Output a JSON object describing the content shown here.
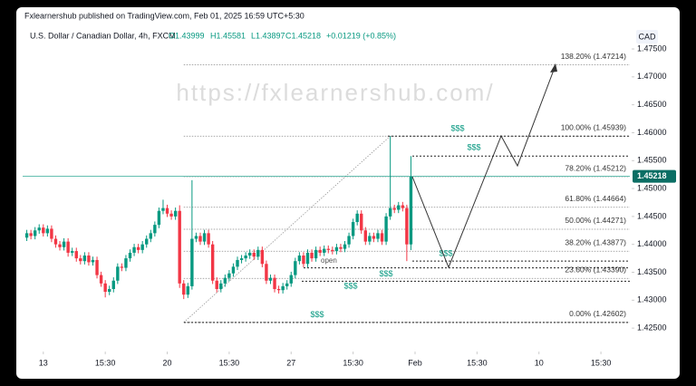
{
  "header": {
    "publisher": "Fxlearnershub published on TradingView.com, Feb 01, 2025 16:59 UTC+5:30"
  },
  "chart_data": {
    "type": "candlestick",
    "symbol": "U.S. Dollar / Canadian Dollar, 4h, FXCM",
    "ohlc_labels": [
      "O1.43999",
      "H1.45581",
      "L1.43897",
      "C1.45218"
    ],
    "change": "+0.01219 (+0.85%)",
    "currency": "CAD",
    "watermark": "https://fxlearnershub.com/",
    "note": "open",
    "up_color": "#089981",
    "down_color": "#f23645",
    "open": [
      1.4412,
      1.442,
      1.4415,
      1.4425,
      1.443,
      1.442,
      1.4428,
      1.441,
      1.44,
      1.4395,
      1.4405,
      1.4385,
      1.4388,
      1.4375,
      1.437,
      1.438,
      1.4368,
      1.4372,
      1.4345,
      1.433,
      1.4315,
      1.432,
      1.4335,
      1.436,
      1.4358,
      1.4375,
      1.4385,
      1.4395,
      1.439,
      1.44,
      1.441,
      1.442,
      1.4435,
      1.446,
      1.4465,
      1.4455,
      1.445,
      1.446,
      1.433,
      1.431,
      1.4325,
      1.441,
      1.4415,
      1.4405,
      1.442,
      1.44,
      1.4335,
      1.432,
      1.433,
      1.434,
      1.4348,
      1.436,
      1.4372,
      1.4375,
      1.438,
      1.4385,
      1.4378,
      1.439,
      1.4365,
      1.4335,
      1.434,
      1.432,
      1.4318,
      1.4325,
      1.433,
      1.4345,
      1.437,
      1.438,
      1.4365,
      1.4385,
      1.4375,
      1.439,
      1.4385,
      1.4392,
      1.439,
      1.4388,
      1.4395,
      1.4392,
      1.44,
      1.4415,
      1.444,
      1.4455,
      1.4425,
      1.4405,
      1.4415,
      1.441,
      1.442,
      1.4405,
      1.445,
      1.4465,
      1.4462,
      1.447,
      1.4465,
      1.43999
    ],
    "high": [
      1.4426,
      1.4426,
      1.4431,
      1.4436,
      1.4436,
      1.4434,
      1.4434,
      1.4416,
      1.4406,
      1.4411,
      1.4411,
      1.4394,
      1.4394,
      1.4381,
      1.4386,
      1.4386,
      1.4378,
      1.4378,
      1.4351,
      1.4336,
      1.4326,
      1.4341,
      1.4366,
      1.4366,
      1.4381,
      1.4391,
      1.4401,
      1.4401,
      1.4406,
      1.4416,
      1.4426,
      1.4441,
      1.4466,
      1.448,
      1.4471,
      1.4461,
      1.4466,
      1.447,
      1.4336,
      1.4331,
      1.4515,
      1.4421,
      1.4421,
      1.4426,
      1.4426,
      1.4406,
      1.4341,
      1.4336,
      1.4346,
      1.4354,
      1.4366,
      1.4378,
      1.4381,
      1.4386,
      1.4391,
      1.4391,
      1.4396,
      1.4396,
      1.4371,
      1.4346,
      1.4346,
      1.4326,
      1.4331,
      1.4336,
      1.4351,
      1.4376,
      1.4386,
      1.4386,
      1.4391,
      1.4391,
      1.4396,
      1.4396,
      1.4398,
      1.4398,
      1.4396,
      1.4401,
      1.4401,
      1.4406,
      1.4421,
      1.4446,
      1.4461,
      1.4461,
      1.4431,
      1.4421,
      1.4421,
      1.4426,
      1.4426,
      1.4456,
      1.4594,
      1.4471,
      1.4476,
      1.4476,
      1.4471,
      1.45581
    ],
    "low": [
      1.4406,
      1.4409,
      1.4409,
      1.4419,
      1.4414,
      1.4414,
      1.4404,
      1.4394,
      1.4389,
      1.4389,
      1.4378,
      1.4379,
      1.4369,
      1.4364,
      1.4364,
      1.4362,
      1.4362,
      1.4339,
      1.4324,
      1.4305,
      1.4309,
      1.4314,
      1.4329,
      1.4352,
      1.4352,
      1.4369,
      1.4379,
      1.4384,
      1.4384,
      1.4394,
      1.4404,
      1.4414,
      1.4429,
      1.4454,
      1.4449,
      1.4444,
      1.4444,
      1.4322,
      1.4302,
      1.4304,
      1.4319,
      1.4404,
      1.4399,
      1.4399,
      1.4394,
      1.4329,
      1.4314,
      1.4314,
      1.4324,
      1.4334,
      1.4342,
      1.4354,
      1.4366,
      1.4369,
      1.4374,
      1.4372,
      1.4372,
      1.4359,
      1.4329,
      1.4329,
      1.4314,
      1.4312,
      1.4312,
      1.4319,
      1.4324,
      1.4339,
      1.4364,
      1.4359,
      1.4359,
      1.4369,
      1.4369,
      1.4379,
      1.4379,
      1.4384,
      1.4382,
      1.4382,
      1.4386,
      1.4386,
      1.4394,
      1.4409,
      1.4434,
      1.4419,
      1.4399,
      1.4399,
      1.4404,
      1.4404,
      1.4399,
      1.4399,
      1.4444,
      1.4456,
      1.4456,
      1.4459,
      1.437,
      1.43897
    ],
    "close": [
      1.442,
      1.4415,
      1.4425,
      1.443,
      1.442,
      1.4428,
      1.441,
      1.44,
      1.4395,
      1.4405,
      1.4385,
      1.4388,
      1.4375,
      1.437,
      1.438,
      1.4368,
      1.4372,
      1.4345,
      1.433,
      1.4315,
      1.432,
      1.4335,
      1.436,
      1.4358,
      1.4375,
      1.4385,
      1.4395,
      1.439,
      1.44,
      1.441,
      1.442,
      1.4435,
      1.446,
      1.4465,
      1.4455,
      1.445,
      1.446,
      1.433,
      1.431,
      1.4325,
      1.441,
      1.4415,
      1.4405,
      1.442,
      1.44,
      1.4335,
      1.432,
      1.433,
      1.434,
      1.4348,
      1.436,
      1.4372,
      1.4375,
      1.438,
      1.4385,
      1.4378,
      1.439,
      1.4365,
      1.4335,
      1.434,
      1.432,
      1.4318,
      1.4325,
      1.433,
      1.4345,
      1.437,
      1.438,
      1.4365,
      1.4385,
      1.4375,
      1.439,
      1.4385,
      1.4392,
      1.439,
      1.4388,
      1.4395,
      1.4392,
      1.44,
      1.4415,
      1.444,
      1.4455,
      1.4425,
      1.4405,
      1.4415,
      1.441,
      1.442,
      1.4405,
      1.445,
      1.4465,
      1.4462,
      1.447,
      1.4465,
      1.44,
      1.45218
    ],
    "last_price": 1.45218,
    "xlim": [
      -1,
      146
    ],
    "xticks": [
      {
        "value": 4,
        "label": "13"
      },
      {
        "value": 19,
        "label": "15:30"
      },
      {
        "value": 34,
        "label": "20"
      },
      {
        "value": 49,
        "label": "15:30"
      },
      {
        "value": 64,
        "label": "27"
      },
      {
        "value": 79,
        "label": "15:30"
      },
      {
        "value": 94,
        "label": "Feb"
      },
      {
        "value": 109,
        "label": "15:30"
      },
      {
        "value": 124,
        "label": "10"
      },
      {
        "value": 139,
        "label": "15:30"
      }
    ],
    "ylim": [
      1.4208,
      1.4789
    ],
    "yticks": [
      {
        "value": 1.475,
        "label": "1.47500"
      },
      {
        "value": 1.47,
        "label": "1.47000"
      },
      {
        "value": 1.465,
        "label": "1.46500"
      },
      {
        "value": 1.46,
        "label": "1.46000"
      },
      {
        "value": 1.455,
        "label": "1.45500"
      },
      {
        "value": 1.45,
        "label": "1.45000"
      },
      {
        "value": 1.445,
        "label": "1.44500"
      },
      {
        "value": 1.44,
        "label": "1.44000"
      },
      {
        "value": 1.435,
        "label": "1.43500"
      },
      {
        "value": 1.43,
        "label": "1.43000"
      },
      {
        "value": 1.425,
        "label": "1.42500"
      }
    ],
    "fib_levels": [
      {
        "value": 1.47214,
        "label": "138.20% (1.47214)"
      },
      {
        "value": 1.45939,
        "label": "100.00% (1.45939)"
      },
      {
        "value": 1.45212,
        "label": "78.20% (1.45212)"
      },
      {
        "value": 1.44664,
        "label": "61.80% (1.44664)"
      },
      {
        "value": 1.44271,
        "label": "50.00% (1.44271)"
      },
      {
        "value": 1.43877,
        "label": "38.20% (1.43877)"
      },
      {
        "value": 1.4339,
        "label": "23.60% (1.43390)"
      },
      {
        "value": 1.42602,
        "label": "0.00% (1.42602)"
      }
    ],
    "liquidity": [
      {
        "value": 1.45939,
        "label": "$$$"
      },
      {
        "value": 1.45581,
        "label": "$$$"
      },
      {
        "value": 1.437,
        "label": "$$$"
      },
      {
        "value": 1.4358,
        "label": "$$$"
      },
      {
        "value": 1.4334,
        "label": "$$$"
      },
      {
        "value": 1.42602,
        "label": "$$$"
      }
    ]
  }
}
